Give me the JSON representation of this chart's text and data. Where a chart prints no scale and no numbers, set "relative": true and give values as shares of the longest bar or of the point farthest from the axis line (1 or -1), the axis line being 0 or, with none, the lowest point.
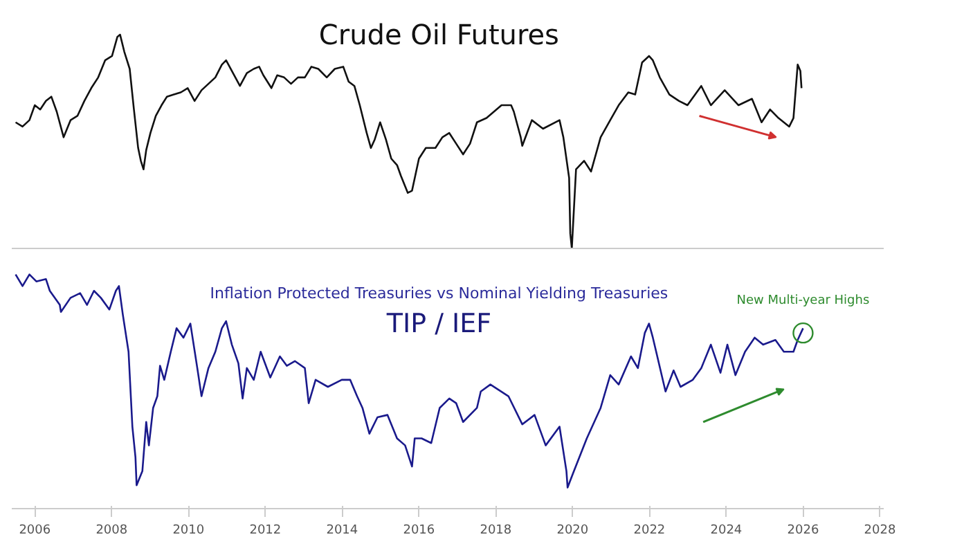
{
  "chart_data": [
    {
      "type": "line",
      "title": "Crude Oil Futures",
      "relative": true,
      "tick_labels": false,
      "xlim": [
        2005.4,
        2028.1
      ],
      "x": [
        2005.5,
        2005.68,
        2005.86,
        2006.0,
        2006.14,
        2006.29,
        2006.43,
        2006.57,
        2006.72,
        2006.75,
        2006.93,
        2007.11,
        2007.29,
        2007.47,
        2007.65,
        2007.83,
        2008.01,
        2008.15,
        2008.22,
        2008.33,
        2008.47,
        2008.58,
        2008.69,
        2008.76,
        2008.83,
        2008.9,
        2009.01,
        2009.15,
        2009.3,
        2009.44,
        2009.62,
        2009.8,
        2009.98,
        2010.16,
        2010.34,
        2010.52,
        2010.7,
        2010.87,
        2010.98,
        2011.16,
        2011.34,
        2011.52,
        2011.7,
        2011.84,
        2011.95,
        2012.16,
        2012.31,
        2012.49,
        2012.67,
        2012.85,
        2013.03,
        2013.2,
        2013.38,
        2013.6,
        2013.81,
        2014.03,
        2014.17,
        2014.32,
        2014.46,
        2014.64,
        2014.75,
        2014.85,
        2014.99,
        2015.14,
        2015.28,
        2015.43,
        2015.53,
        2015.71,
        2015.82,
        2016.0,
        2016.18,
        2016.43,
        2016.61,
        2016.79,
        2016.97,
        2017.15,
        2017.33,
        2017.51,
        2017.76,
        2018.15,
        2018.4,
        2018.47,
        2018.65,
        2018.69,
        2018.94,
        2019.23,
        2019.66,
        2019.76,
        2019.91,
        2019.94,
        2019.98,
        2020.09,
        2020.3,
        2020.48,
        2020.73,
        2020.98,
        2021.2,
        2021.45,
        2021.63,
        2021.81,
        2021.99,
        2022.09,
        2022.27,
        2022.52,
        2022.77,
        2022.99,
        2023.35,
        2023.6,
        2023.96,
        2024.32,
        2024.67,
        2024.92,
        2025.14,
        2025.36,
        2025.64,
        2025.75,
        2025.86,
        2025.93,
        2025.96
      ],
      "series": [
        {
          "color": "#111111",
          "values": [
            0.59,
            0.57,
            0.6,
            0.67,
            0.65,
            0.69,
            0.71,
            0.64,
            0.54,
            0.52,
            0.6,
            0.62,
            0.69,
            0.75,
            0.8,
            0.88,
            0.9,
            0.99,
            1.0,
            0.92,
            0.84,
            0.65,
            0.47,
            0.41,
            0.37,
            0.46,
            0.54,
            0.62,
            0.67,
            0.71,
            0.72,
            0.73,
            0.75,
            0.69,
            0.74,
            0.77,
            0.8,
            0.86,
            0.88,
            0.82,
            0.76,
            0.82,
            0.84,
            0.85,
            0.81,
            0.75,
            0.81,
            0.8,
            0.77,
            0.8,
            0.8,
            0.85,
            0.84,
            0.8,
            0.84,
            0.85,
            0.78,
            0.76,
            0.67,
            0.54,
            0.47,
            0.51,
            0.59,
            0.51,
            0.42,
            0.39,
            0.34,
            0.26,
            0.27,
            0.42,
            0.47,
            0.47,
            0.52,
            0.54,
            0.49,
            0.44,
            0.49,
            0.59,
            0.61,
            0.67,
            0.67,
            0.64,
            0.52,
            0.48,
            0.6,
            0.56,
            0.6,
            0.52,
            0.33,
            0.07,
            0.0,
            0.37,
            0.41,
            0.36,
            0.52,
            0.6,
            0.67,
            0.73,
            0.72,
            0.87,
            0.9,
            0.88,
            0.8,
            0.72,
            0.69,
            0.67,
            0.76,
            0.67,
            0.74,
            0.67,
            0.7,
            0.59,
            0.65,
            0.61,
            0.57,
            0.61,
            0.86,
            0.83,
            0.75
          ]
        }
      ]
    },
    {
      "type": "line",
      "title": "TIP / IEF",
      "subtitle": "Inflation Protected Treasuries vs Nominal Yielding Treasuries",
      "relative": true,
      "tick_labels": "x",
      "xlim": [
        2005.4,
        2028.1
      ],
      "xticks": [
        2006,
        2008,
        2010,
        2012,
        2014,
        2016,
        2018,
        2020,
        2022,
        2024,
        2026,
        2028
      ],
      "annotations": [
        {
          "text": "New Multi-year Highs",
          "x": 2026.0,
          "y": 0.75
        }
      ],
      "x": [
        2005.5,
        2005.68,
        2005.86,
        2006.04,
        2006.29,
        2006.39,
        2006.65,
        2006.68,
        2006.93,
        2007.18,
        2007.36,
        2007.54,
        2007.72,
        2007.94,
        2008.11,
        2008.19,
        2008.29,
        2008.44,
        2008.54,
        2008.62,
        2008.65,
        2008.8,
        2008.9,
        2008.97,
        2009.08,
        2009.19,
        2009.26,
        2009.37,
        2009.54,
        2009.69,
        2009.87,
        2010.05,
        2010.23,
        2010.34,
        2010.52,
        2010.7,
        2010.87,
        2010.98,
        2011.13,
        2011.3,
        2011.41,
        2011.52,
        2011.7,
        2011.88,
        2012.13,
        2012.38,
        2012.56,
        2012.77,
        2013.03,
        2013.13,
        2013.31,
        2013.63,
        2013.99,
        2014.21,
        2014.39,
        2014.53,
        2014.71,
        2014.92,
        2015.18,
        2015.43,
        2015.64,
        2015.82,
        2015.89,
        2016.07,
        2016.32,
        2016.54,
        2016.79,
        2016.97,
        2017.15,
        2017.51,
        2017.61,
        2017.86,
        2018.33,
        2018.69,
        2019.01,
        2019.3,
        2019.66,
        2019.84,
        2019.87,
        2020.01,
        2020.37,
        2020.73,
        2020.98,
        2021.2,
        2021.52,
        2021.7,
        2021.88,
        2021.99,
        2022.09,
        2022.42,
        2022.63,
        2022.81,
        2023.13,
        2023.35,
        2023.6,
        2023.85,
        2024.03,
        2024.24,
        2024.49,
        2024.74,
        2024.96,
        2025.28,
        2025.5,
        2025.75,
        2025.86,
        2026.0
      ],
      "series": [
        {
          "color": "#1a1a8c",
          "values": [
            1.0,
            0.95,
            1.0,
            0.97,
            0.98,
            0.93,
            0.87,
            0.84,
            0.9,
            0.92,
            0.87,
            0.93,
            0.9,
            0.85,
            0.93,
            0.95,
            0.83,
            0.67,
            0.35,
            0.22,
            0.1,
            0.16,
            0.37,
            0.27,
            0.43,
            0.48,
            0.61,
            0.55,
            0.67,
            0.77,
            0.73,
            0.79,
            0.6,
            0.48,
            0.6,
            0.67,
            0.77,
            0.8,
            0.7,
            0.62,
            0.47,
            0.6,
            0.55,
            0.67,
            0.56,
            0.65,
            0.61,
            0.63,
            0.6,
            0.45,
            0.55,
            0.52,
            0.55,
            0.55,
            0.48,
            0.43,
            0.32,
            0.39,
            0.4,
            0.3,
            0.27,
            0.18,
            0.3,
            0.3,
            0.28,
            0.43,
            0.47,
            0.45,
            0.37,
            0.43,
            0.5,
            0.53,
            0.48,
            0.36,
            0.4,
            0.27,
            0.35,
            0.16,
            0.09,
            0.15,
            0.3,
            0.43,
            0.57,
            0.53,
            0.65,
            0.6,
            0.75,
            0.79,
            0.73,
            0.5,
            0.59,
            0.52,
            0.55,
            0.6,
            0.7,
            0.58,
            0.7,
            0.57,
            0.67,
            0.73,
            0.7,
            0.72,
            0.67,
            0.67,
            0.72,
            0.77
          ]
        }
      ]
    }
  ]
}
